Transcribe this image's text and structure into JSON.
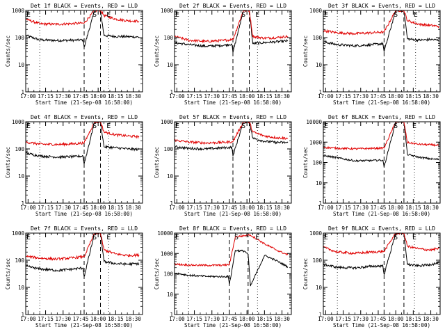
{
  "figure": {
    "grid": false,
    "legend": "none",
    "colors": {
      "events": "#000000",
      "lld": "#e00000",
      "axes": "#000000",
      "background": "#ffffff"
    }
  },
  "chart_data": [
    {
      "type": "line",
      "title": "Det 1f BLACK = Events, RED = LLD",
      "xlabel": "Start Time (21-Sep-08 16:58:00)",
      "ylabel": "Counts/sec",
      "x_ticks": [
        "17:00",
        "17:15",
        "17:30",
        "17:45",
        "18:00",
        "18:15",
        "18:30"
      ],
      "y_ticks": [
        "1",
        "10",
        "100",
        "1000"
      ],
      "y_scale": "log",
      "ylim": [
        1,
        1000
      ],
      "xlim": [
        "16:58",
        "18:38"
      ],
      "markers": [
        {
          "label": "E",
          "time": "16:58",
          "line": "dotted"
        },
        {
          "label": "S",
          "time": "17:57",
          "line": "dashed"
        },
        {
          "label": "E",
          "time": "18:09",
          "line": "dotted"
        }
      ],
      "dotted_lines": [
        "17:10",
        "18:09"
      ],
      "dashed_lines": [
        "17:48",
        "18:02"
      ],
      "x": [
        "16:58",
        "17:10",
        "17:25",
        "17:40",
        "17:47",
        "17:48",
        "17:57",
        "18:02",
        "18:05",
        "18:15",
        "18:25",
        "18:35"
      ],
      "series": [
        {
          "name": "Events",
          "values": [
            120,
            82,
            78,
            80,
            82,
            45,
            1000,
            1000,
            120,
            110,
            108,
            105
          ]
        },
        {
          "name": "LLD",
          "values": [
            480,
            320,
            310,
            330,
            340,
            340,
            1000,
            1000,
            650,
            480,
            420,
            400
          ]
        }
      ]
    },
    {
      "type": "line",
      "title": "Det 2f BLACK = Events, RED = LLD",
      "xlabel": "Start Time (21-Sep-08 16:58:00)",
      "ylabel": "Counts/sec",
      "x_ticks": [
        "17:00",
        "17:15",
        "17:30",
        "17:45",
        "18:00",
        "18:15",
        "18:30"
      ],
      "y_ticks": [
        "1",
        "10",
        "100",
        "1000"
      ],
      "y_scale": "log",
      "ylim": [
        1,
        1000
      ],
      "xlim": [
        "16:58",
        "18:38"
      ],
      "markers": [
        {
          "label": "E",
          "time": "16:58",
          "line": "dotted"
        },
        {
          "label": "S",
          "time": "17:57",
          "line": "dashed"
        },
        {
          "label": "E",
          "time": "18:09",
          "line": "dotted"
        }
      ],
      "dotted_lines": [
        "17:10",
        "18:09"
      ],
      "dashed_lines": [
        "17:48",
        "18:02"
      ],
      "x": [
        "16:58",
        "17:10",
        "17:25",
        "17:40",
        "17:47",
        "17:48",
        "17:57",
        "18:02",
        "18:05",
        "18:15",
        "18:25",
        "18:35"
      ],
      "series": [
        {
          "name": "Events",
          "values": [
            65,
            55,
            48,
            52,
            58,
            28,
            1000,
            1000,
            60,
            65,
            70,
            75
          ]
        },
        {
          "name": "LLD",
          "values": [
            110,
            80,
            72,
            78,
            85,
            85,
            1000,
            1000,
            110,
            95,
            100,
            110
          ]
        }
      ]
    },
    {
      "type": "line",
      "title": "Det 3f BLACK = Events, RED = LLD",
      "xlabel": "Start Time (21-Sep-08 16:58:00)",
      "ylabel": "Counts/sec",
      "x_ticks": [
        "17:00",
        "17:15",
        "17:30",
        "17:45",
        "18:00",
        "18:15",
        "18:30"
      ],
      "y_ticks": [
        "1",
        "10",
        "100",
        "1000"
      ],
      "y_scale": "log",
      "ylim": [
        1,
        1000
      ],
      "xlim": [
        "16:58",
        "18:38"
      ],
      "markers": [
        {
          "label": "E",
          "time": "16:58",
          "line": "dotted"
        },
        {
          "label": "S",
          "time": "18:00",
          "line": "dashed"
        },
        {
          "label": "E",
          "time": "18:17",
          "line": "dotted"
        }
      ],
      "dotted_lines": [
        "17:10",
        "18:17"
      ],
      "dashed_lines": [
        "17:50",
        "18:07"
      ],
      "x": [
        "16:58",
        "17:10",
        "17:25",
        "17:40",
        "17:49",
        "17:50",
        "18:00",
        "18:07",
        "18:10",
        "18:20",
        "18:30",
        "18:37"
      ],
      "series": [
        {
          "name": "Events",
          "values": [
            70,
            55,
            50,
            55,
            60,
            30,
            1000,
            1000,
            90,
            80,
            85,
            80
          ]
        },
        {
          "name": "LLD",
          "values": [
            180,
            150,
            140,
            150,
            160,
            160,
            1000,
            1000,
            420,
            310,
            280,
            260
          ]
        }
      ]
    },
    {
      "type": "line",
      "title": "Det 4f BLACK = Events, RED = LLD",
      "xlabel": "Start Time (21-Sep-08 16:58:00)",
      "ylabel": "Counts/sec",
      "x_ticks": [
        "17:00",
        "17:15",
        "17:30",
        "17:45",
        "18:00",
        "18:15",
        "18:30"
      ],
      "y_ticks": [
        "1",
        "10",
        "100",
        "1000"
      ],
      "y_scale": "log",
      "ylim": [
        1,
        1000
      ],
      "xlim": [
        "16:58",
        "18:38"
      ],
      "markers": [
        {
          "label": "E",
          "time": "16:58",
          "line": "dotted"
        },
        {
          "label": "S",
          "time": "17:57",
          "line": "dashed"
        },
        {
          "label": "E",
          "time": "18:09",
          "line": "dotted"
        }
      ],
      "dotted_lines": [
        "17:10",
        "18:09"
      ],
      "dashed_lines": [
        "17:48",
        "18:02"
      ],
      "x": [
        "16:58",
        "17:10",
        "17:25",
        "17:40",
        "17:47",
        "17:48",
        "17:57",
        "18:02",
        "18:05",
        "18:15",
        "18:25",
        "18:35"
      ],
      "series": [
        {
          "name": "Events",
          "values": [
            70,
            55,
            50,
            52,
            55,
            28,
            1000,
            1000,
            120,
            110,
            100,
            95
          ]
        },
        {
          "name": "LLD",
          "values": [
            180,
            150,
            145,
            155,
            165,
            165,
            1000,
            1000,
            420,
            330,
            300,
            280
          ]
        }
      ]
    },
    {
      "type": "line",
      "title": "Det 5f BLACK = Events, RED = LLD",
      "xlabel": "Start Time (21-Sep-08 16:58:00)",
      "ylabel": "Counts/sec",
      "x_ticks": [
        "17:00",
        "17:15",
        "17:30",
        "17:45",
        "18:00",
        "18:15",
        "18:30"
      ],
      "y_ticks": [
        "1",
        "10",
        "100",
        "1000"
      ],
      "y_scale": "log",
      "ylim": [
        1,
        1000
      ],
      "xlim": [
        "16:58",
        "18:38"
      ],
      "markers": [
        {
          "label": "E",
          "time": "16:58",
          "line": "dotted"
        },
        {
          "label": "S",
          "time": "17:57",
          "line": "dashed"
        },
        {
          "label": "E",
          "time": "18:09",
          "line": "dotted"
        }
      ],
      "dotted_lines": [
        "17:10",
        "18:09"
      ],
      "dashed_lines": [
        "17:48",
        "18:02"
      ],
      "x": [
        "16:58",
        "17:10",
        "17:25",
        "17:40",
        "17:47",
        "17:48",
        "17:57",
        "18:02",
        "18:05",
        "18:15",
        "18:25",
        "18:35"
      ],
      "series": [
        {
          "name": "Events",
          "values": [
            120,
            105,
            100,
            110,
            115,
            55,
            1000,
            1000,
            250,
            190,
            175,
            170
          ]
        },
        {
          "name": "LLD",
          "values": [
            210,
            180,
            165,
            175,
            185,
            185,
            1000,
            1000,
            420,
            300,
            260,
            245
          ]
        }
      ]
    },
    {
      "type": "line",
      "title": "Det 6f BLACK = Events, RED = LLD",
      "xlabel": "Start Time (21-Sep-08 16:58:00)",
      "ylabel": "Counts/sec",
      "x_ticks": [
        "17:00",
        "17:15",
        "17:30",
        "17:45",
        "18:00",
        "18:15",
        "18:30"
      ],
      "y_ticks": [
        "1",
        "10",
        "100",
        "1000",
        "10000"
      ],
      "y_scale": "log",
      "ylim": [
        1,
        10000
      ],
      "xlim": [
        "16:58",
        "18:38"
      ],
      "markers": [
        {
          "label": "E",
          "time": "16:58",
          "line": "dotted"
        },
        {
          "label": "S",
          "time": "18:00",
          "line": "dashed"
        },
        {
          "label": "E",
          "time": "18:16",
          "line": "dotted"
        }
      ],
      "dotted_lines": [
        "17:10",
        "18:16"
      ],
      "dashed_lines": [
        "17:50",
        "18:07"
      ],
      "x": [
        "16:58",
        "17:10",
        "17:25",
        "17:40",
        "17:49",
        "17:50",
        "18:00",
        "18:07",
        "18:10",
        "18:20",
        "18:30",
        "18:37"
      ],
      "series": [
        {
          "name": "Events",
          "values": [
            220,
            170,
            120,
            125,
            130,
            60,
            10000,
            10000,
            250,
            180,
            150,
            140
          ]
        },
        {
          "name": "LLD",
          "values": [
            560,
            500,
            470,
            490,
            510,
            510,
            10000,
            10000,
            950,
            780,
            740,
            700
          ]
        }
      ]
    },
    {
      "type": "line",
      "title": "Det 7f BLACK = Events, RED = LLD",
      "xlabel": "Start Time (21-Sep-08 16:58:00)",
      "ylabel": "Counts/sec",
      "x_ticks": [
        "17:00",
        "17:15",
        "17:30",
        "17:45",
        "18:00",
        "18:15",
        "18:30"
      ],
      "y_ticks": [
        "1",
        "10",
        "100",
        "1000"
      ],
      "y_scale": "log",
      "ylim": [
        1,
        1000
      ],
      "xlim": [
        "16:58",
        "18:38"
      ],
      "markers": [
        {
          "label": "E",
          "time": "16:58",
          "line": "dotted"
        },
        {
          "label": "S",
          "time": "17:57",
          "line": "dashed"
        },
        {
          "label": "E",
          "time": "18:09",
          "line": "dotted"
        }
      ],
      "dotted_lines": [
        "17:10",
        "18:09"
      ],
      "dashed_lines": [
        "17:48",
        "18:02"
      ],
      "x": [
        "16:58",
        "17:10",
        "17:25",
        "17:40",
        "17:47",
        "17:48",
        "17:57",
        "18:02",
        "18:05",
        "18:15",
        "18:25",
        "18:35"
      ],
      "series": [
        {
          "name": "Events",
          "values": [
            60,
            48,
            42,
            48,
            52,
            25,
            1000,
            1000,
            90,
            75,
            72,
            75
          ]
        },
        {
          "name": "LLD",
          "values": [
            140,
            120,
            110,
            125,
            135,
            135,
            1000,
            1000,
            240,
            170,
            150,
            155
          ]
        }
      ]
    },
    {
      "type": "line",
      "title": "Det 8f BLACK = Events, RED = LLD",
      "xlabel": "Start Time (21-Sep-08 16:58:00)",
      "ylabel": "Counts/sec",
      "x_ticks": [
        "17:00",
        "17:15",
        "17:30",
        "17:45",
        "18:00",
        "18:15",
        "18:30"
      ],
      "y_ticks": [
        "1",
        "10",
        "100",
        "1000",
        "10000"
      ],
      "y_scale": "log",
      "ylim": [
        1,
        10000
      ],
      "xlim": [
        "16:58",
        "18:38"
      ],
      "markers": [
        {
          "label": "E",
          "time": "16:58",
          "line": "dotted"
        },
        {
          "label": "S",
          "time": "17:51",
          "line": "dashed"
        },
        {
          "label": "E",
          "time": "18:09",
          "line": "dotted"
        }
      ],
      "dotted_lines": [
        "17:10",
        "18:09"
      ],
      "dashed_lines": [
        "17:45",
        "18:01"
      ],
      "x": [
        "16:58",
        "17:10",
        "17:25",
        "17:40",
        "17:44",
        "17:45",
        "17:50",
        "17:58",
        "18:01",
        "18:03",
        "18:15",
        "18:25",
        "18:35"
      ],
      "series": [
        {
          "name": "Events",
          "values": [
            110,
            85,
            75,
            72,
            75,
            30,
            1400,
            1300,
            900,
            25,
            800,
            450,
            220
          ]
        },
        {
          "name": "LLD",
          "values": [
            300,
            270,
            260,
            265,
            280,
            280,
            6500,
            7500,
            8000,
            8000,
            3000,
            1500,
            850
          ]
        }
      ]
    },
    {
      "type": "line",
      "title": "Det 9f BLACK = Events, RED = LLD",
      "xlabel": "Start Time (21-Sep-08 16:58:00)",
      "ylabel": "Counts/sec",
      "x_ticks": [
        "17:00",
        "17:15",
        "17:30",
        "17:45",
        "18:00",
        "18:15",
        "18:30"
      ],
      "y_ticks": [
        "1",
        "10",
        "100",
        "1000"
      ],
      "y_scale": "log",
      "ylim": [
        1,
        1000
      ],
      "xlim": [
        "16:58",
        "18:38"
      ],
      "markers": [
        {
          "label": "E",
          "time": "16:58",
          "line": "dotted"
        },
        {
          "label": "S",
          "time": "18:00",
          "line": "dashed"
        },
        {
          "label": "E",
          "time": "18:16",
          "line": "dotted"
        }
      ],
      "dotted_lines": [
        "17:10",
        "18:16"
      ],
      "dashed_lines": [
        "17:50",
        "18:07"
      ],
      "x": [
        "16:58",
        "17:10",
        "17:25",
        "17:40",
        "17:49",
        "17:50",
        "18:00",
        "18:07",
        "18:10",
        "18:20",
        "18:30",
        "18:37"
      ],
      "series": [
        {
          "name": "Events",
          "values": [
            70,
            55,
            52,
            60,
            62,
            30,
            1000,
            1000,
            70,
            62,
            70,
            80
          ]
        },
        {
          "name": "LLD",
          "values": [
            300,
            200,
            180,
            200,
            210,
            210,
            1000,
            1000,
            330,
            260,
            240,
            270
          ]
        }
      ]
    }
  ]
}
